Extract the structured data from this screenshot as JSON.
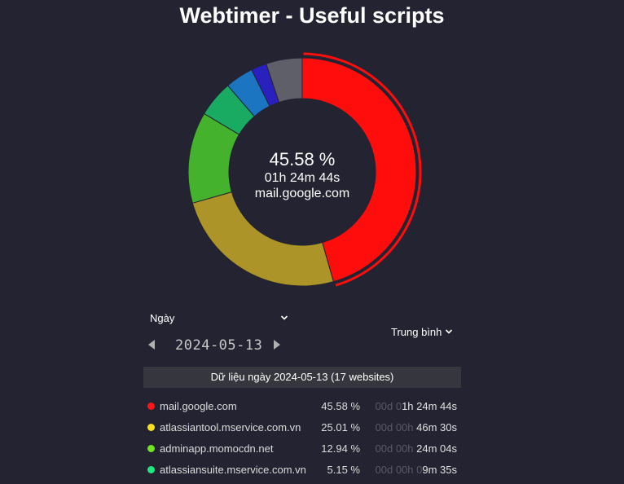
{
  "title": "Webtimer - Useful scripts",
  "center": {
    "percent": "45.58 %",
    "duration": "01h 24m 44s",
    "site": "mail.google.com"
  },
  "period_select": {
    "value": "Ngày"
  },
  "date_nav": {
    "date": "2024-05-13"
  },
  "mode_select": {
    "value": "Trung bình"
  },
  "data_header": "Dữ liệu ngày 2024-05-13 (17 websites)",
  "websites": [
    {
      "name": "mail.google.com",
      "percent": "45.58 %",
      "time_zero": "00d 0",
      "time_val": "1h 24m 44s",
      "color": "#ff1515"
    },
    {
      "name": "atlassiantool.mservice.com.vn",
      "percent": "25.01 %",
      "time_zero": "00d 00h ",
      "time_val": "46m 30s",
      "color": "#f7e11c"
    },
    {
      "name": "adminapp.momocdn.net",
      "percent": "12.94 %",
      "time_zero": "00d 00h ",
      "time_val": "24m 04s",
      "color": "#6ee622"
    },
    {
      "name": "atlassiansuite.mservice.com.vn",
      "percent": "5.15 %",
      "time_zero": "00d 00h 0",
      "time_val": "9m 35s",
      "color": "#1fe880"
    }
  ],
  "chart_data": {
    "type": "pie",
    "title": "",
    "categories": [
      "mail.google.com",
      "atlassiantool.mservice.com.vn",
      "adminapp.momocdn.net",
      "atlassiansuite.mservice.com.vn",
      "",
      "",
      ""
    ],
    "values": [
      45.58,
      25.01,
      12.94,
      5.15,
      4.0,
      2.2,
      5.12
    ],
    "colors": [
      "#ff0d0d",
      "#ad9428",
      "#44b22c",
      "#1aab63",
      "#1c75c0",
      "#2a20bd",
      "#5f5f69"
    ],
    "highlighted": "mail.google.com",
    "hole": "donut"
  }
}
